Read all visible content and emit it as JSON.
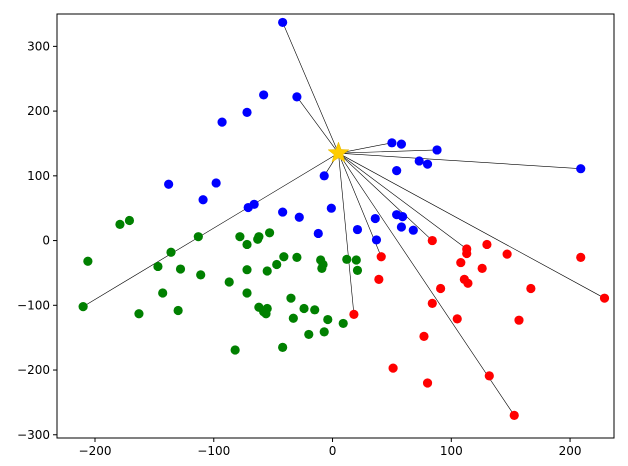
{
  "chart_data": {
    "type": "scatter",
    "xlim": [
      -232,
      237
    ],
    "ylim": [
      -305,
      350
    ],
    "x_ticks": [
      -200,
      -100,
      0,
      100,
      200
    ],
    "y_ticks": [
      -300,
      -200,
      -100,
      0,
      100,
      200,
      300
    ],
    "x_tick_labels": [
      "−200",
      "−100",
      "0",
      "100",
      "200"
    ],
    "y_tick_labels": [
      "−300",
      "−200",
      "−100",
      "0",
      "100",
      "200",
      "300"
    ],
    "grid": false,
    "center": {
      "x": 5,
      "y": 135,
      "marker": "star",
      "color": "#ffcc00"
    },
    "series": [
      {
        "color": "#0000ff",
        "points": [
          [
            -42,
            337
          ],
          [
            -58,
            225
          ],
          [
            -30,
            222
          ],
          [
            -72,
            198
          ],
          [
            -93,
            183
          ],
          [
            50,
            151
          ],
          [
            58,
            149
          ],
          [
            88,
            140
          ],
          [
            73,
            123
          ],
          [
            80,
            118
          ],
          [
            54,
            108
          ],
          [
            209,
            111
          ],
          [
            -7,
            100
          ],
          [
            -138,
            87
          ],
          [
            -98,
            89
          ],
          [
            -109,
            63
          ],
          [
            -66,
            56
          ],
          [
            -71,
            51
          ],
          [
            -42,
            44
          ],
          [
            -28,
            36
          ],
          [
            -1,
            50
          ],
          [
            36,
            34
          ],
          [
            54,
            40
          ],
          [
            59,
            37
          ],
          [
            58,
            21
          ],
          [
            68,
            16
          ],
          [
            -12,
            11
          ],
          [
            21,
            17
          ],
          [
            37,
            1
          ]
        ]
      },
      {
        "color": "#008000",
        "points": [
          [
            -171,
            31
          ],
          [
            -179,
            25
          ],
          [
            -113,
            6
          ],
          [
            -136,
            -18
          ],
          [
            -206,
            -32
          ],
          [
            -147,
            -40
          ],
          [
            -128,
            -44
          ],
          [
            -78,
            6
          ],
          [
            -72,
            -6
          ],
          [
            -63,
            2
          ],
          [
            -53,
            12
          ],
          [
            -62,
            6
          ],
          [
            -41,
            -25
          ],
          [
            -47,
            -37
          ],
          [
            -30,
            -26
          ],
          [
            -10,
            -30
          ],
          [
            -8,
            -37
          ],
          [
            -9,
            -43
          ],
          [
            12,
            -29
          ],
          [
            20,
            -30
          ],
          [
            21,
            -46
          ],
          [
            -72,
            -45
          ],
          [
            -55,
            -47
          ],
          [
            -87,
            -64
          ],
          [
            -111,
            -53
          ],
          [
            -143,
            -81
          ],
          [
            -210,
            -102
          ],
          [
            -163,
            -113
          ],
          [
            -130,
            -108
          ],
          [
            -72,
            -81
          ],
          [
            -35,
            -89
          ],
          [
            -62,
            -103
          ],
          [
            -55,
            -105
          ],
          [
            -56,
            -113
          ],
          [
            -58,
            -110
          ],
          [
            -24,
            -105
          ],
          [
            -15,
            -107
          ],
          [
            -33,
            -120
          ],
          [
            -4,
            -122
          ],
          [
            9,
            -128
          ],
          [
            -20,
            -145
          ],
          [
            -7,
            -141
          ],
          [
            -42,
            -165
          ],
          [
            -82,
            -169
          ]
        ]
      },
      {
        "color": "#ff0000",
        "points": [
          [
            84,
            0
          ],
          [
            130,
            -6
          ],
          [
            113,
            -13
          ],
          [
            113,
            -20
          ],
          [
            147,
            -21
          ],
          [
            209,
            -26
          ],
          [
            41,
            -25
          ],
          [
            108,
            -34
          ],
          [
            126,
            -43
          ],
          [
            39,
            -60
          ],
          [
            111,
            -60
          ],
          [
            114,
            -66
          ],
          [
            91,
            -74
          ],
          [
            167,
            -74
          ],
          [
            229,
            -89
          ],
          [
            84,
            -97
          ],
          [
            105,
            -121
          ],
          [
            157,
            -123
          ],
          [
            18,
            -114
          ],
          [
            77,
            -148
          ],
          [
            51,
            -197
          ],
          [
            132,
            -209
          ],
          [
            80,
            -220
          ],
          [
            153,
            -270
          ]
        ]
      }
    ],
    "connected_points": [
      [
        -42,
        337
      ],
      [
        -30,
        222
      ],
      [
        50,
        151
      ],
      [
        88,
        140
      ],
      [
        209,
        111
      ],
      [
        -7,
        100
      ],
      [
        -210,
        -102
      ],
      [
        18,
        -114
      ],
      [
        41,
        -25
      ],
      [
        84,
        0
      ],
      [
        113,
        -13
      ],
      [
        229,
        -89
      ],
      [
        153,
        -270
      ]
    ]
  }
}
